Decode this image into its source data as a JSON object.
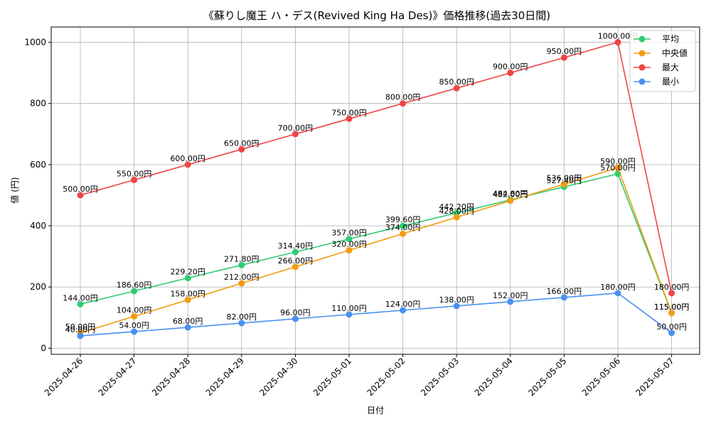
{
  "chart_data": {
    "type": "line",
    "title": "《蘇りし魔王 ハ・デス(Revived King Ha Des)》価格推移(過去30日間)",
    "xlabel": "日付",
    "ylabel": "値 (円)",
    "categories": [
      "2025-04-26",
      "2025-04-27",
      "2025-04-28",
      "2025-04-29",
      "2025-04-30",
      "2025-05-01",
      "2025-05-02",
      "2025-05-03",
      "2025-05-04",
      "2025-05-05",
      "2025-05-06",
      "2025-05-07"
    ],
    "ylim": [
      -20,
      1050
    ],
    "yticks": [
      0,
      200,
      400,
      600,
      800,
      1000
    ],
    "grid": true,
    "legend_position": "top-right",
    "label_suffix": "円",
    "series": [
      {
        "name": "平均",
        "color": "#2ecc71",
        "values": [
          144.0,
          186.6,
          229.2,
          271.8,
          314.4,
          357.0,
          399.6,
          442.2,
          484.8,
          527.4,
          570.0,
          115.0
        ]
      },
      {
        "name": "中央値",
        "color": "#f39c12",
        "values": [
          50.0,
          104.0,
          158.0,
          212.0,
          266.0,
          320.0,
          374.0,
          428.0,
          482.0,
          536.0,
          590.0,
          115.0
        ]
      },
      {
        "name": "最大",
        "color": "#ef4444",
        "values": [
          500.0,
          550.0,
          600.0,
          650.0,
          700.0,
          750.0,
          800.0,
          850.0,
          900.0,
          950.0,
          1000.0,
          180.0
        ]
      },
      {
        "name": "最小",
        "color": "#4a90f0",
        "values": [
          40.0,
          54.0,
          68.0,
          82.0,
          96.0,
          110.0,
          124.0,
          138.0,
          152.0,
          166.0,
          180.0,
          50.0
        ]
      }
    ]
  }
}
